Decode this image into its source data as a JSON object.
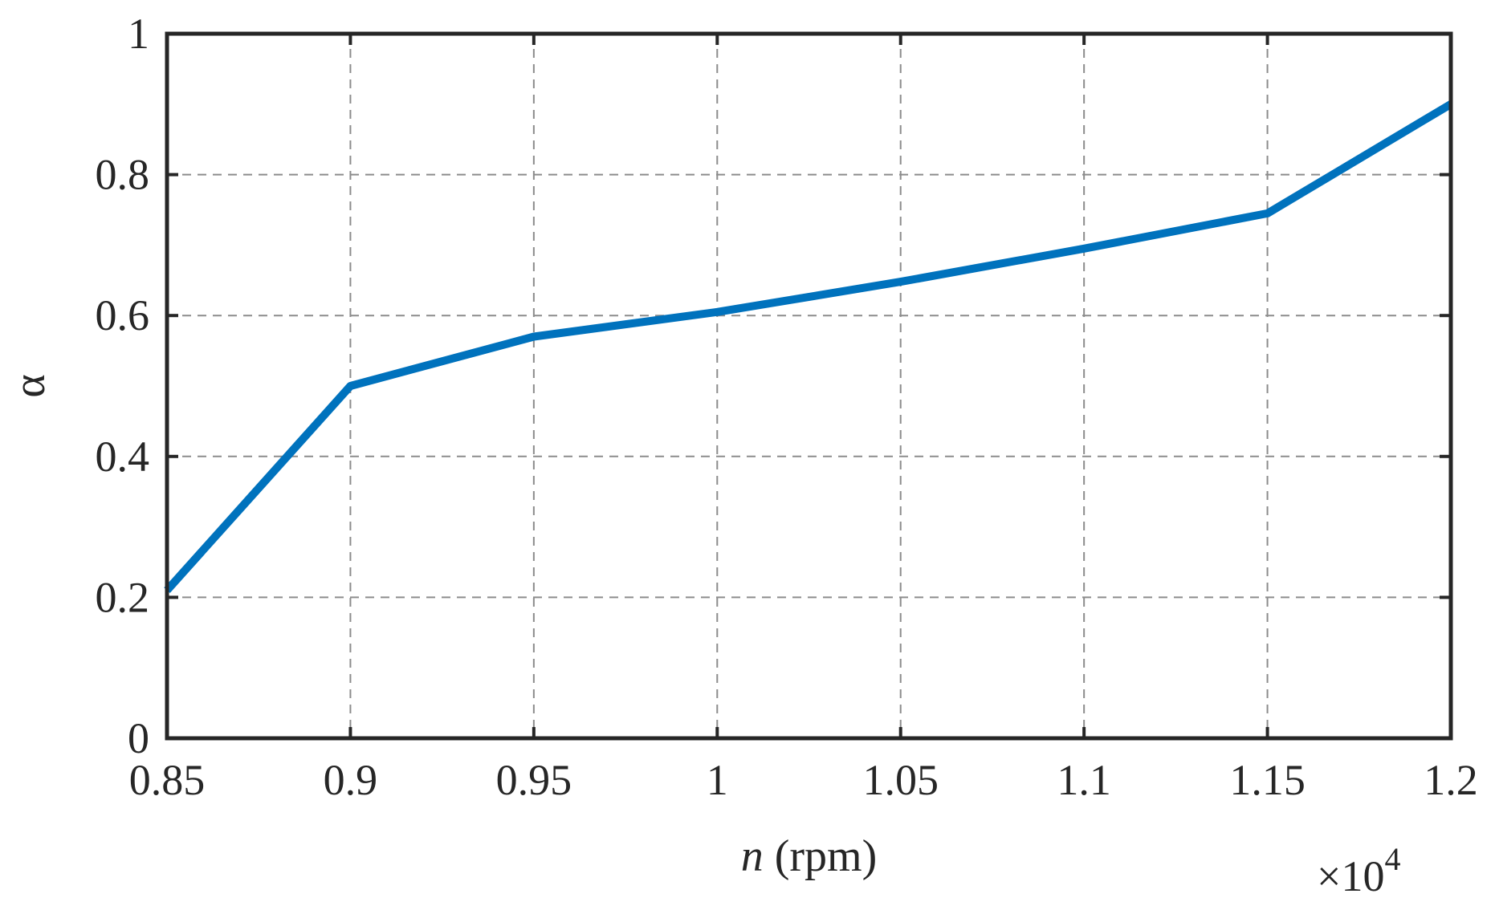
{
  "chart_data": {
    "type": "line",
    "title": "",
    "xlabel_var": "n",
    "xlabel_unit": " (rpm)",
    "ylabel": "α",
    "x_multiplier_label": "×10",
    "x_multiplier_exponent": "4",
    "xlim": [
      0.85,
      1.2
    ],
    "ylim": [
      0,
      1
    ],
    "xticks": [
      0.85,
      0.9,
      0.95,
      1,
      1.05,
      1.1,
      1.15,
      1.2
    ],
    "xtick_labels": [
      "0.85",
      "0.9",
      "0.95",
      "1",
      "1.05",
      "1.1",
      "1.15",
      "1.2"
    ],
    "yticks": [
      0,
      0.2,
      0.4,
      0.6,
      0.8,
      1
    ],
    "ytick_labels": [
      "0",
      "0.2",
      "0.4",
      "0.6",
      "0.8",
      "1"
    ],
    "grid": true,
    "series": [
      {
        "color": "#0072BD",
        "x": [
          0.85,
          0.9,
          0.95,
          1.0,
          1.05,
          1.1,
          1.15,
          1.2
        ],
        "y": [
          0.21,
          0.5,
          0.57,
          0.605,
          0.648,
          0.695,
          0.745,
          0.9
        ]
      }
    ]
  }
}
